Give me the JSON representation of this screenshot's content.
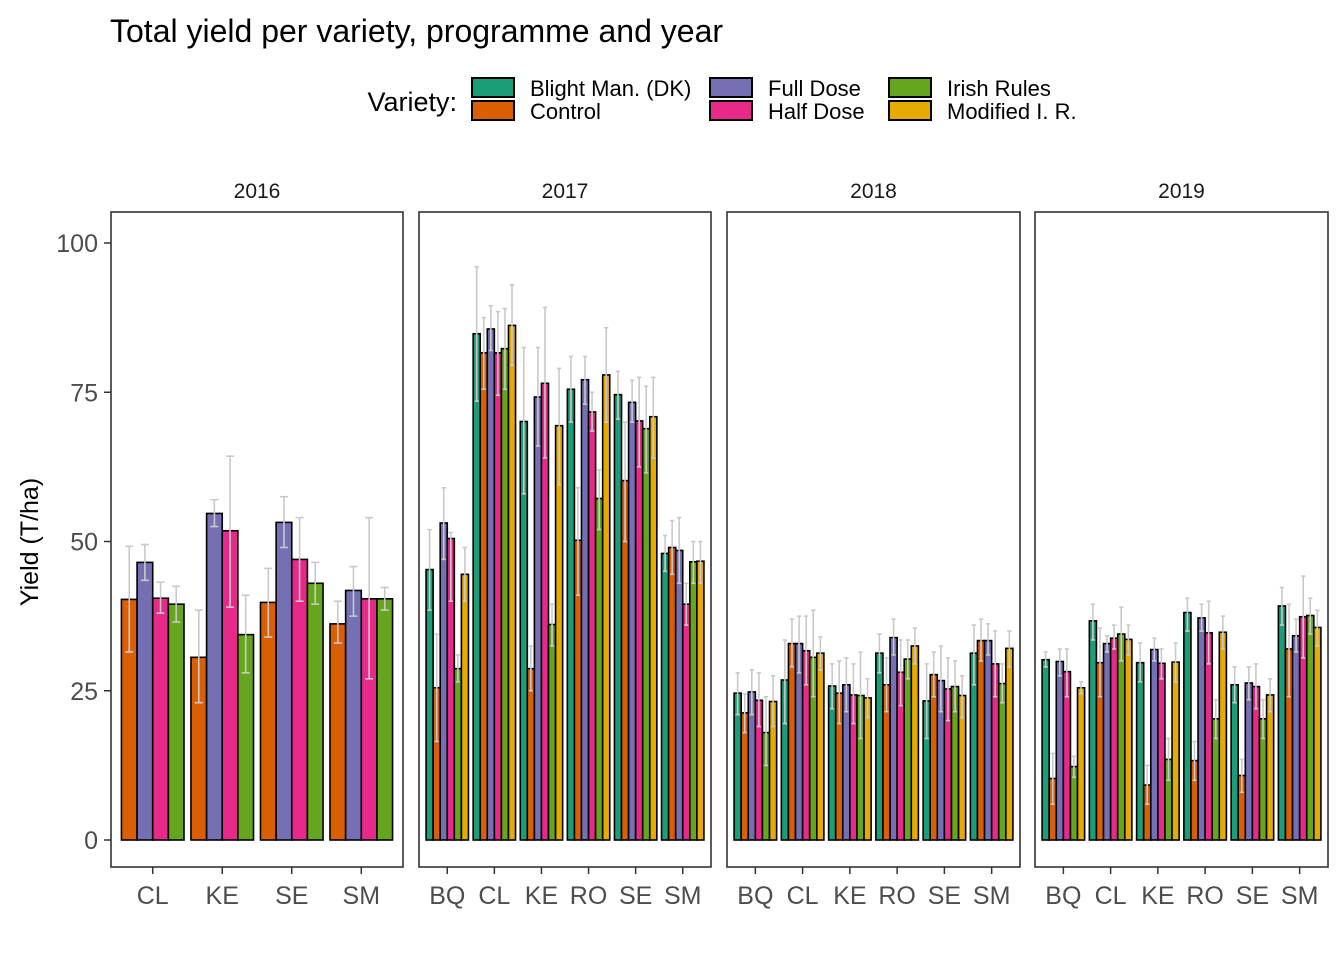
{
  "chart_data": {
    "type": "bar",
    "title": "Total yield per variety, programme and year",
    "ylabel": "Yield (T/ha)",
    "xlabel": "",
    "ylim": [
      0,
      105
    ],
    "yticks": [
      0,
      25,
      50,
      75,
      100
    ],
    "grid": false,
    "legend": {
      "title": "Variety:",
      "position": "top",
      "entries": [
        {
          "name": "Blight Man. (DK)",
          "color": "#1b9e77"
        },
        {
          "name": "Control",
          "color": "#d95f02"
        },
        {
          "name": "Full Dose",
          "color": "#7570b3"
        },
        {
          "name": "Half Dose",
          "color": "#e7298a"
        },
        {
          "name": "Irish Rules",
          "color": "#66a61e"
        },
        {
          "name": "Modified I. R.",
          "color": "#e6ab02"
        }
      ]
    },
    "facets": [
      {
        "label": "2016",
        "categories": [
          "CL",
          "KE",
          "SE",
          "SM"
        ],
        "series": [
          {
            "name": "Control",
            "values": [
              40.3,
              30.6,
              39.8,
              36.2
            ],
            "err": [
              [
                31.5,
                49.2
              ],
              [
                23,
                38.5
              ],
              [
                34,
                45.5
              ],
              [
                33,
                40
              ]
            ]
          },
          {
            "name": "Full Dose",
            "values": [
              46.5,
              54.7,
              53.2,
              41.8
            ],
            "err": [
              [
                43.5,
                49.5
              ],
              [
                52.5,
                57
              ],
              [
                49,
                57.5
              ],
              [
                37.5,
                45.8
              ]
            ]
          },
          {
            "name": "Half Dose",
            "values": [
              40.5,
              51.8,
              47,
              40.4
            ],
            "err": [
              [
                38,
                43.2
              ],
              [
                39,
                64.3
              ],
              [
                40,
                54
              ],
              [
                27,
                54
              ]
            ]
          },
          {
            "name": "Irish Rules",
            "values": [
              39.5,
              34.4,
              43,
              40.4
            ],
            "err": [
              [
                36.5,
                42.5
              ],
              [
                28,
                41
              ],
              [
                39.5,
                46.5
              ],
              [
                38.5,
                42.3
              ]
            ]
          }
        ]
      },
      {
        "label": "2017",
        "categories": [
          "BQ",
          "CL",
          "KE",
          "RO",
          "SE",
          "SM"
        ],
        "series": [
          {
            "name": "Blight Man. (DK)",
            "values": [
              45.3,
              84.8,
              70.1,
              75.5,
              74.6,
              48
            ],
            "err": [
              [
                38.5,
                52
              ],
              [
                73.5,
                96
              ],
              [
                58,
                82.5
              ],
              [
                70,
                81
              ],
              [
                70.5,
                78.5
              ],
              [
                45,
                51
              ]
            ]
          },
          {
            "name": "Control",
            "values": [
              25.5,
              81.6,
              28.7,
              50.2,
              60.2,
              49
            ],
            "err": [
              [
                16.5,
                34.5
              ],
              [
                75.5,
                87.5
              ],
              [
                25,
                32.5
              ],
              [
                41,
                59
              ],
              [
                50,
                70
              ],
              [
                44.5,
                53.5
              ]
            ]
          },
          {
            "name": "Full Dose",
            "values": [
              53.1,
              85.6,
              74.2,
              77.1,
              73.3,
              48.5
            ],
            "err": [
              [
                47,
                59
              ],
              [
                82,
                89.5
              ],
              [
                66,
                82.5
              ],
              [
                73,
                81
              ],
              [
                70,
                77
              ],
              [
                43,
                54
              ]
            ]
          },
          {
            "name": "Half Dose",
            "values": [
              50.5,
              81.6,
              76.5,
              71.7,
              70.2,
              39.5
            ],
            "err": [
              [
                40,
                51.5
              ],
              [
                74.5,
                88.5
              ],
              [
                64,
                89.2
              ],
              [
                68.5,
                75
              ],
              [
                62.5,
                77.5
              ],
              [
                36,
                43
              ]
            ]
          },
          {
            "name": "Irish Rules",
            "values": [
              28.7,
              82.3,
              36.1,
              57.2,
              68.9,
              46.6
            ],
            "err": [
              [
                26.5,
                31
              ],
              [
                75.5,
                89
              ],
              [
                32.5,
                39.5
              ],
              [
                52,
                62
              ],
              [
                61.5,
                76
              ],
              [
                43,
                50
              ]
            ]
          },
          {
            "name": "Modified I. R.",
            "values": [
              44.5,
              86.2,
              69.4,
              77.9,
              70.9,
              46.7
            ],
            "err": [
              [
                40,
                49
              ],
              [
                79.5,
                93
              ],
              [
                59.5,
                79
              ],
              [
                70,
                85.8
              ],
              [
                64,
                77.5
              ],
              [
                43,
                50
              ]
            ]
          }
        ]
      },
      {
        "label": "2018",
        "categories": [
          "BQ",
          "CL",
          "KE",
          "RO",
          "SE",
          "SM"
        ],
        "series": [
          {
            "name": "Blight Man. (DK)",
            "values": [
              24.6,
              26.8,
              25.8,
              31.3,
              23.3,
              31.3
            ],
            "err": [
              [
                21,
                28
              ],
              [
                19.5,
                33.5
              ],
              [
                22,
                29.5
              ],
              [
                28,
                34.5
              ],
              [
                17,
                29.5
              ],
              [
                26,
                36
              ]
            ]
          },
          {
            "name": "Control",
            "values": [
              21.3,
              32.9,
              24.6,
              26,
              27.7,
              33.4
            ],
            "err": [
              [
                18,
                24.5
              ],
              [
                29,
                37
              ],
              [
                19.5,
                30
              ],
              [
                21.5,
                30.5
              ],
              [
                24,
                31.5
              ],
              [
                30,
                37
              ]
            ]
          },
          {
            "name": "Full Dose",
            "values": [
              24.8,
              32.9,
              26,
              33.9,
              26.7,
              33.4
            ],
            "err": [
              [
                21,
                28.5
              ],
              [
                28,
                37.5
              ],
              [
                21.5,
                30.5
              ],
              [
                31,
                37
              ],
              [
                21.5,
                32.5
              ],
              [
                31,
                36.2
              ]
            ]
          },
          {
            "name": "Half Dose",
            "values": [
              23.4,
              31.7,
              24.3,
              28.1,
              25.3,
              29.5
            ],
            "err": [
              [
                19,
                28
              ],
              [
                26,
                37.5
              ],
              [
                19.5,
                29.5
              ],
              [
                22.5,
                33.5
              ],
              [
                20,
                30.5
              ],
              [
                24,
                35
              ]
            ]
          },
          {
            "name": "Irish Rules",
            "values": [
              18,
              30.6,
              24.2,
              30.3,
              25.7,
              26.2
            ],
            "err": [
              [
                12.5,
                24
              ],
              [
                24,
                38.5
              ],
              [
                17,
                31.5
              ],
              [
                27,
                33.5
              ],
              [
                21.5,
                30
              ],
              [
                23,
                29.5
              ]
            ]
          },
          {
            "name": "Modified I. R.",
            "values": [
              23.2,
              31.3,
              23.8,
              32.5,
              24.2,
              32.1
            ],
            "err": [
              [
                19,
                27.5
              ],
              [
                28.5,
                34
              ],
              [
                20.5,
                27
              ],
              [
                29.5,
                35.5
              ],
              [
                20.5,
                27.5
              ],
              [
                29,
                35
              ]
            ]
          }
        ]
      },
      {
        "label": "2019",
        "categories": [
          "BQ",
          "CL",
          "KE",
          "RO",
          "SE",
          "SM"
        ],
        "series": [
          {
            "name": "Blight Man. (DK)",
            "values": [
              30.2,
              36.7,
              29.7,
              38.1,
              26,
              39.2
            ],
            "err": [
              [
                29,
                31.5
              ],
              [
                33.5,
                39.5
              ],
              [
                26.5,
                33
              ],
              [
                35,
                40.5
              ],
              [
                23,
                29
              ],
              [
                36,
                42.3
              ]
            ]
          },
          {
            "name": "Control",
            "values": [
              10.3,
              29.7,
              9.2,
              13.3,
              10.8,
              32
            ],
            "err": [
              [
                6,
                14.5
              ],
              [
                24,
                35.5
              ],
              [
                6,
                12.5
              ],
              [
                10,
                16.5
              ],
              [
                8,
                13.5
              ],
              [
                24,
                39.5
              ]
            ]
          },
          {
            "name": "Full Dose",
            "values": [
              29.9,
              32.9,
              31.9,
              37.2,
              26.3,
              34.2
            ],
            "err": [
              [
                27.5,
                32
              ],
              [
                31.5,
                34.2
              ],
              [
                30,
                33.8
              ],
              [
                35,
                39.5
              ],
              [
                23.5,
                29
              ],
              [
                31.5,
                37
              ]
            ]
          },
          {
            "name": "Half Dose",
            "values": [
              28.2,
              33.8,
              29.6,
              34.7,
              25.7,
              37.4
            ],
            "err": [
              [
                24,
                32
              ],
              [
                32,
                36
              ],
              [
                27,
                32
              ],
              [
                29.5,
                40
              ],
              [
                22,
                29.5
              ],
              [
                30.5,
                44.2
              ]
            ]
          },
          {
            "name": "Irish Rules",
            "values": [
              12.3,
              34.5,
              13.5,
              20.3,
              20.3,
              37.6
            ],
            "err": [
              [
                10.5,
                14
              ],
              [
                30,
                39
              ],
              [
                10,
                17
              ],
              [
                17,
                23.5
              ],
              [
                17,
                23.5
              ],
              [
                34.5,
                40.5
              ]
            ]
          },
          {
            "name": "Modified I. R.",
            "values": [
              25.5,
              33.6,
              29.8,
              34.8,
              24.3,
              35.6
            ],
            "err": [
              [
                24.5,
                26.5
              ],
              [
                31,
                36
              ],
              [
                26.5,
                33
              ],
              [
                32,
                37.5
              ],
              [
                21.5,
                27
              ],
              [
                32.5,
                38.5
              ]
            ]
          }
        ]
      }
    ]
  }
}
